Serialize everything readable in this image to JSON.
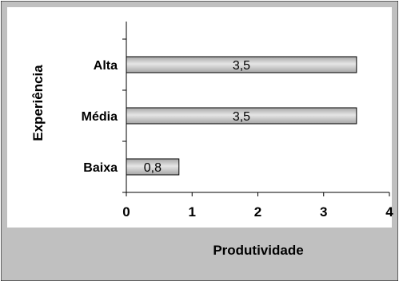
{
  "chart_data": {
    "type": "bar",
    "orientation": "horizontal",
    "title": "",
    "xlabel": "Produtividade",
    "ylabel": "Experiência",
    "categories": [
      "Alta",
      "Média",
      "Baixa"
    ],
    "values": [
      3.5,
      3.5,
      0.8
    ],
    "data_labels": [
      "3,5",
      "3,5",
      "0,8"
    ],
    "xlim": [
      0,
      4
    ],
    "x_ticks": [
      "0",
      "1",
      "2",
      "3",
      "4"
    ],
    "grid": false,
    "legend": "none",
    "colors": {
      "chart_background": "#c0c0c0",
      "plot_background": "#ffffff",
      "bar_fill": "#a6a6a6",
      "bar_highlight": "#e6e6e6",
      "bar_stroke": "#000000",
      "axis": "#000000",
      "text": "#000000"
    }
  }
}
